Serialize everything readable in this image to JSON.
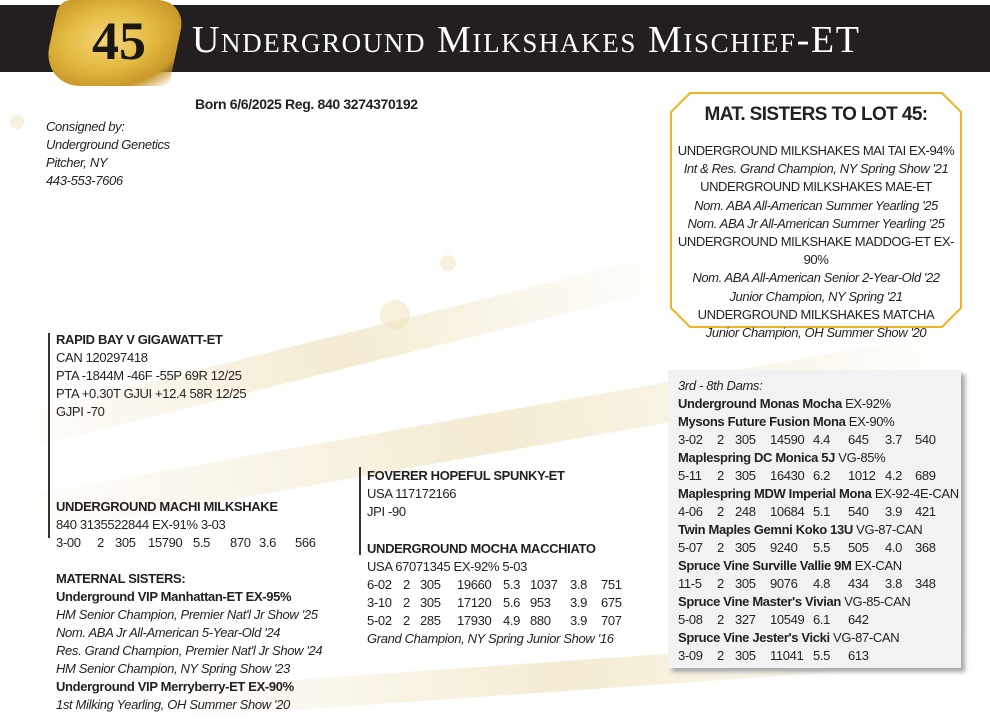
{
  "header": {
    "lot_number": "45",
    "title": "Underground Milkshakes Mischief-ET",
    "accent": "#e2b93f",
    "bar_color": "#231f20"
  },
  "born": "Born 6/6/2025 Reg. 840 3274370192",
  "consigner": [
    "Consigned by:",
    "Underground Genetics",
    "Pitcher, NY",
    "443-553-7606"
  ],
  "sire": {
    "name": "RAPID BAY V GIGAWATT-ET",
    "lines": [
      "CAN 120297418",
      "PTA -1844M -46F -55P 69R 12/25",
      "PTA +0.30T GJUI +12.4 58R 12/25",
      "GJPI -70"
    ]
  },
  "dam": {
    "name": "UNDERGROUND MACHI MILKSHAKE",
    "lines": [
      "840 3135522844  EX-91% 3-03"
    ],
    "records": [
      [
        "3-00",
        "2",
        "305",
        "15790",
        "5.5",
        "870",
        "3.6",
        "566"
      ]
    ]
  },
  "maternal_sisters": {
    "heading": "MATERNAL SISTERS:",
    "items": [
      {
        "name": "Underground VIP Manhattan-ET EX-95%",
        "awards": [
          "HM Senior Champion, Premier Nat'l Jr Show '25",
          "Nom. ABA Jr All-American 5-Year-Old '24",
          "Res. Grand Champion, Premier Nat'l Jr Show '24",
          "HM Senior Champion, NY Spring Show '23"
        ]
      },
      {
        "name": "Underground VIP Merryberry-ET EX-90%",
        "awards": [
          "1st Milking Yearling, OH Summer Show '20"
        ]
      }
    ]
  },
  "dam_sire": {
    "name": "FOVERER HOPEFUL SPUNKY-ET",
    "lines": [
      "USA 117172166",
      "JPI -90"
    ]
  },
  "granddam": {
    "name": "UNDERGROUND MOCHA MACCHIATO",
    "lines": [
      "USA 67071345 EX-92% 5-03"
    ],
    "records": [
      [
        "6-02",
        "2",
        "305",
        "19660",
        "5.3",
        "1037",
        "3.8",
        "751"
      ],
      [
        "3-10",
        "2",
        "305",
        "17120",
        "5.6",
        "953",
        "3.9",
        "675"
      ],
      [
        "5-02",
        "2",
        "285",
        "17930",
        "4.9",
        "880",
        "3.9",
        "707"
      ]
    ],
    "award": "Grand Champion, NY Spring Junior Show '16"
  },
  "mat_sisters_box": {
    "heading": "MAT. SISTERS TO LOT 45:",
    "items": [
      {
        "name": "UNDERGROUND MILKSHAKES MAI TAI EX-94%",
        "awards": [
          "Int & Res. Grand Champion, NY Spring Show '21"
        ]
      },
      {
        "name": "UNDERGROUND MILKSHAKES MAE-ET",
        "awards": [
          "Nom. ABA All-American Summer Yearling '25",
          "Nom. ABA Jr All-American Summer Yearling '25"
        ]
      },
      {
        "name": "UNDERGROUND MILKSHAKE MADDOG-ET EX-90%",
        "awards": [
          "Nom. ABA All-American Senior 2-Year-Old '22",
          "Junior Champion, NY Spring '21"
        ]
      },
      {
        "name": "UNDERGROUND MILKSHAKES MATCHA",
        "awards": [
          "Junior Champion, OH Summer Show '20"
        ]
      }
    ],
    "border_color": "#f0b323"
  },
  "dams_box": {
    "heading": "3rd - 8th Dams:",
    "items": [
      {
        "name": "Underground Monas Mocha",
        "score": "EX-92%",
        "records": []
      },
      {
        "name": "Mysons Future Fusion Mona",
        "score": "EX-90%",
        "records": [
          [
            "3-02",
            "2",
            "305",
            "14590",
            "4.4",
            "645",
            "3.7",
            "540"
          ]
        ]
      },
      {
        "name": "Maplespring DC Monica 5J",
        "score": "VG-85%",
        "records": [
          [
            "5-11",
            "2",
            "305",
            "16430",
            "6.2",
            "1012",
            "4.2",
            "689"
          ]
        ]
      },
      {
        "name": "Maplespring MDW Imperial Mona",
        "score": "EX-92-4E-CAN",
        "records": [
          [
            "4-06",
            "2",
            "248",
            "10684",
            "5.1",
            "540",
            "3.9",
            "421"
          ]
        ]
      },
      {
        "name": "Twin Maples Gemni Koko 13U",
        "score": "VG-87-CAN",
        "records": [
          [
            "5-07",
            "2",
            "305",
            "9240",
            "5.5",
            "505",
            "4.0",
            "368"
          ]
        ]
      },
      {
        "name": "Spruce Vine Surville Vallie 9M",
        "score": "EX-CAN",
        "records": [
          [
            "11-5",
            "2",
            "305",
            "9076",
            "4.8",
            "434",
            "3.8",
            "348"
          ]
        ]
      },
      {
        "name": "Spruce Vine Master's Vivian",
        "score": "VG-85-CAN",
        "records": [
          [
            "5-08",
            "2",
            "327",
            "10549",
            "6.1",
            "642"
          ]
        ]
      },
      {
        "name": "Spruce Vine Jester's Vicki",
        "score": "VG-87-CAN",
        "records": [
          [
            "3-09",
            "2",
            "305",
            "11041",
            "5.5",
            "613"
          ]
        ]
      }
    ]
  }
}
